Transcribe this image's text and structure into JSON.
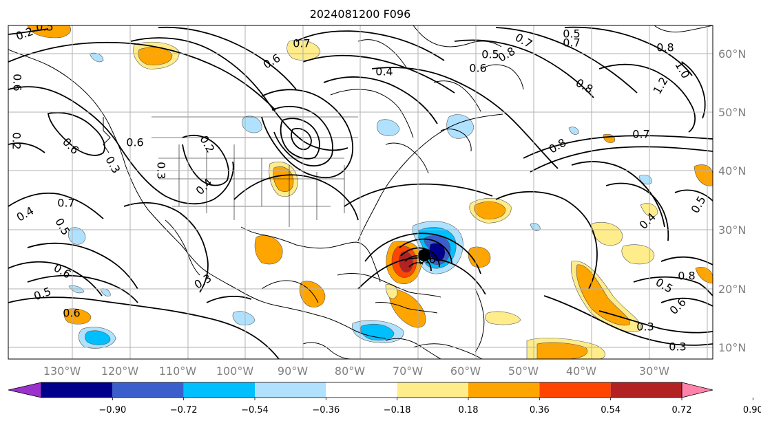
{
  "title": "2024081200 F096",
  "map": {
    "lon_labels": [
      "130°W",
      "120°W",
      "110°W",
      "100°W",
      "90°W",
      "80°W",
      "70°W",
      "60°W",
      "50°W",
      "40°W",
      "30°W"
    ],
    "lat_labels": [
      "60°N",
      "50°N",
      "40°N",
      "30°N",
      "20°N",
      "10°N"
    ],
    "contour_labels": [
      "0.2",
      "0.5",
      "0.7",
      "0.5",
      "0.5",
      "0.7",
      "0.4",
      "0.6",
      "0.8",
      "0.7",
      "0.8",
      "1.0",
      "1.2",
      "0.8",
      "0.6",
      "0.2",
      "0.3",
      "0.4",
      "0.6",
      "0.3",
      "0.7",
      "0.4",
      "0.5",
      "0.6",
      "0.5",
      "0.6",
      "0.3",
      "0.3",
      "0.7",
      "0.8",
      "0.6",
      "0.4",
      "0.8",
      "0.5",
      "0.6",
      "0.3",
      "0.2",
      "0.6",
      "0.5",
      "0.6"
    ],
    "storm_marker": "hurricane-center",
    "colors": {
      "coastline": "#000000",
      "contour": "#000000",
      "grid": "#b0b0b0",
      "axis_label": "#7f7f7f"
    }
  },
  "colorbar": {
    "ticks": [
      "−0.90",
      "−0.72",
      "−0.54",
      "−0.36",
      "−0.18",
      "0.18",
      "0.36",
      "0.54",
      "0.72",
      "0.90"
    ],
    "colors": [
      "#9a32cd",
      "#00008b",
      "#3a5fcd",
      "#00bfff",
      "#b0e2ff",
      "#ffffff",
      "#ffec8b",
      "#ffa500",
      "#ff4500",
      "#b22222",
      "#ff82ab"
    ]
  }
}
